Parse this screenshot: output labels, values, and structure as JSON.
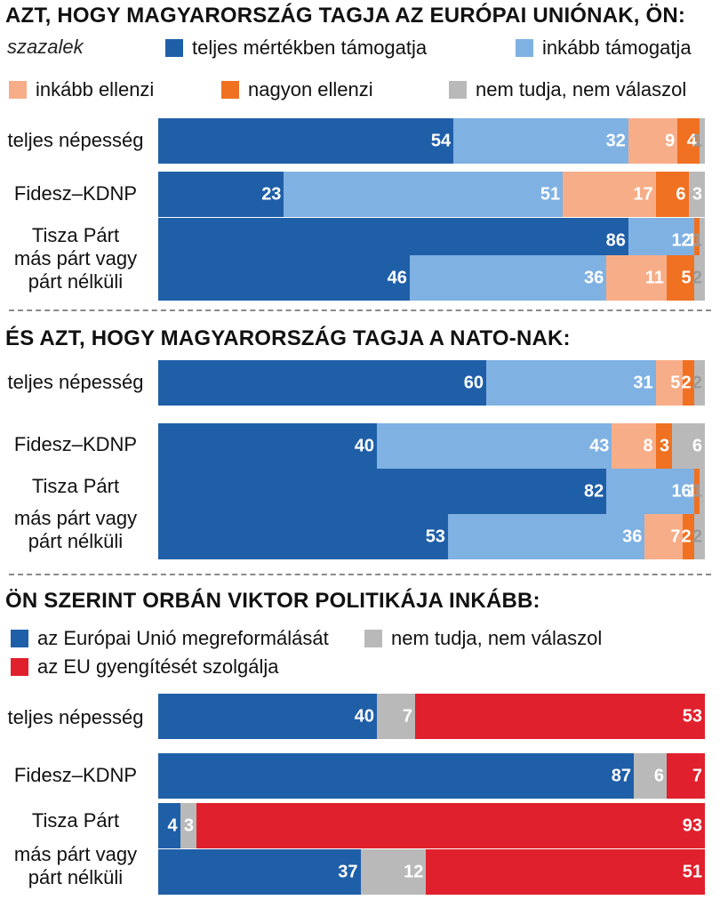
{
  "colors": {
    "teljes": "#1f5fa8",
    "inkabb_tam": "#7fb1e3",
    "inkabb_ell": "#f7ad88",
    "nagyon_ell": "#f07122",
    "nem_tudja": "#b9b9b9",
    "eu_reform": "#1f5fa8",
    "eu_gyengit": "#e0202c"
  },
  "unit_label": "szazalek",
  "chart_data": [
    {
      "type": "bar",
      "stacked": true,
      "orientation": "horizontal",
      "title": "AZT, HOGY MAGYARORSZÁG TAGJA AZ EURÓPAI UNIÓNAK, ÖN:",
      "categories": [
        "teljes népesség",
        "Fidesz–KDNP",
        "Tisza Párt",
        "más párt vagy párt nélküli"
      ],
      "series": [
        {
          "name": "teljes mértékben támogatja",
          "color": "#1f5fa8",
          "values": [
            54,
            23,
            86,
            46
          ]
        },
        {
          "name": "inkább támogatja",
          "color": "#7fb1e3",
          "values": [
            32,
            51,
            12,
            36
          ]
        },
        {
          "name": "inkább ellenzi",
          "color": "#f7ad88",
          "values": [
            9,
            17,
            0,
            11
          ]
        },
        {
          "name": "nagyon ellenzi",
          "color": "#f07122",
          "values": [
            4,
            6,
            1,
            5
          ]
        },
        {
          "name": "nem tudja, nem válaszol",
          "color": "#b9b9b9",
          "values": [
            1,
            3,
            1,
            2
          ]
        }
      ]
    },
    {
      "type": "bar",
      "stacked": true,
      "orientation": "horizontal",
      "title": "ÉS AZT, HOGY MAGYARORSZÁG TAGJA A NATO-NAK:",
      "categories": [
        "teljes népesség",
        "Fidesz–KDNP",
        "Tisza Párt",
        "más párt vagy párt nélküli"
      ],
      "series": [
        {
          "name": "teljes mértékben támogatja",
          "color": "#1f5fa8",
          "values": [
            60,
            40,
            82,
            53
          ]
        },
        {
          "name": "inkább támogatja",
          "color": "#7fb1e3",
          "values": [
            31,
            43,
            16,
            36
          ]
        },
        {
          "name": "inkább ellenzi",
          "color": "#f7ad88",
          "values": [
            5,
            8,
            0,
            7
          ]
        },
        {
          "name": "nagyon ellenzi",
          "color": "#f07122",
          "values": [
            2,
            3,
            1,
            2
          ]
        },
        {
          "name": "nem tudja, nem válaszol",
          "color": "#b9b9b9",
          "values": [
            2,
            6,
            1,
            2
          ]
        }
      ]
    },
    {
      "type": "bar",
      "stacked": true,
      "orientation": "horizontal",
      "title": "ÖN SZERINT ORBÁN VIKTOR POLITIKÁJA INKÁBB:",
      "categories": [
        "teljes népesség",
        "Fidesz–KDNP",
        "Tisza Párt",
        "más párt vagy párt nélküli"
      ],
      "series": [
        {
          "name": "az Európai Unió megreformálását",
          "color": "#1f5fa8",
          "values": [
            40,
            87,
            4,
            37
          ]
        },
        {
          "name": "nem tudja, nem válaszol",
          "color": "#b9b9b9",
          "values": [
            7,
            6,
            3,
            12
          ]
        },
        {
          "name": "az EU gyengítését szolgálja",
          "color": "#e0202c",
          "values": [
            53,
            7,
            93,
            51
          ]
        }
      ]
    }
  ]
}
